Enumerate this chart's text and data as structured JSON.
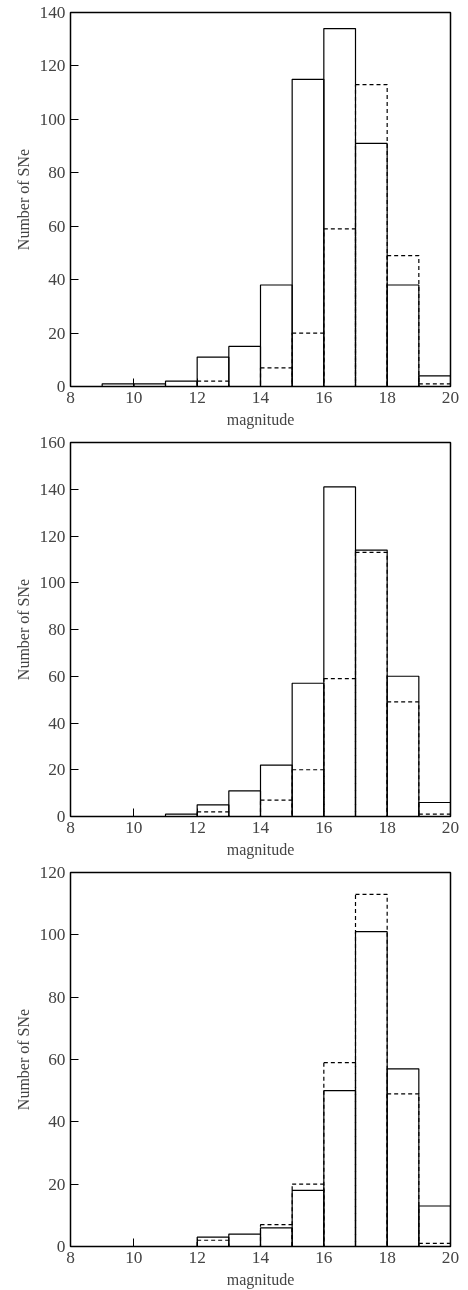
{
  "chart_data": [
    {
      "type": "histogram",
      "xlabel": "magnitude",
      "ylabel": "Number of SNe",
      "bins": [
        8,
        9,
        10,
        11,
        12,
        13,
        14,
        15,
        16,
        17,
        18,
        19,
        20
      ],
      "xlim": [
        8,
        20
      ],
      "xticks": [
        8,
        10,
        12,
        14,
        16,
        18,
        20
      ],
      "ylim": [
        0,
        140
      ],
      "yticks": [
        0,
        20,
        40,
        60,
        80,
        100,
        120,
        140
      ],
      "grid": false,
      "series": [
        {
          "color": "#000000",
          "line_style": "solid",
          "values": [
            0,
            1,
            1,
            2,
            11,
            15,
            38,
            115,
            134,
            91,
            38,
            4
          ]
        },
        {
          "color": "#000000",
          "line_style": "dashed",
          "values": [
            0,
            0,
            0,
            0,
            2,
            null,
            7,
            20,
            59,
            113,
            49,
            1
          ]
        }
      ]
    },
    {
      "type": "histogram",
      "xlabel": "magnitude",
      "ylabel": "Number of SNe",
      "bins": [
        8,
        9,
        10,
        11,
        12,
        13,
        14,
        15,
        16,
        17,
        18,
        19,
        20
      ],
      "xlim": [
        8,
        20
      ],
      "xticks": [
        8,
        10,
        12,
        14,
        16,
        18,
        20
      ],
      "ylim": [
        0,
        160
      ],
      "yticks": [
        0,
        20,
        40,
        60,
        80,
        100,
        120,
        140,
        160
      ],
      "grid": false,
      "series": [
        {
          "color": "#000000",
          "line_style": "solid",
          "values": [
            0,
            0,
            0,
            1,
            5,
            11,
            22,
            57,
            141,
            114,
            60,
            6
          ]
        },
        {
          "color": "#000000",
          "line_style": "dashed",
          "values": [
            0,
            0,
            0,
            0,
            2,
            null,
            7,
            20,
            59,
            113,
            49,
            1
          ]
        }
      ]
    },
    {
      "type": "histogram",
      "xlabel": "magnitude",
      "ylabel": "Number of SNe",
      "bins": [
        8,
        9,
        10,
        11,
        12,
        13,
        14,
        15,
        16,
        17,
        18,
        19,
        20
      ],
      "xlim": [
        8,
        20
      ],
      "xticks": [
        8,
        10,
        12,
        14,
        16,
        18,
        20
      ],
      "ylim": [
        0,
        120
      ],
      "yticks": [
        0,
        20,
        40,
        60,
        80,
        100,
        120
      ],
      "grid": false,
      "series": [
        {
          "color": "#000000",
          "line_style": "solid",
          "values": [
            0,
            0,
            0,
            0,
            3,
            4,
            6,
            18,
            50,
            101,
            57,
            13
          ]
        },
        {
          "color": "#000000",
          "line_style": "dashed",
          "values": [
            0,
            0,
            0,
            0,
            2,
            null,
            7,
            20,
            59,
            113,
            49,
            1
          ]
        }
      ]
    }
  ]
}
